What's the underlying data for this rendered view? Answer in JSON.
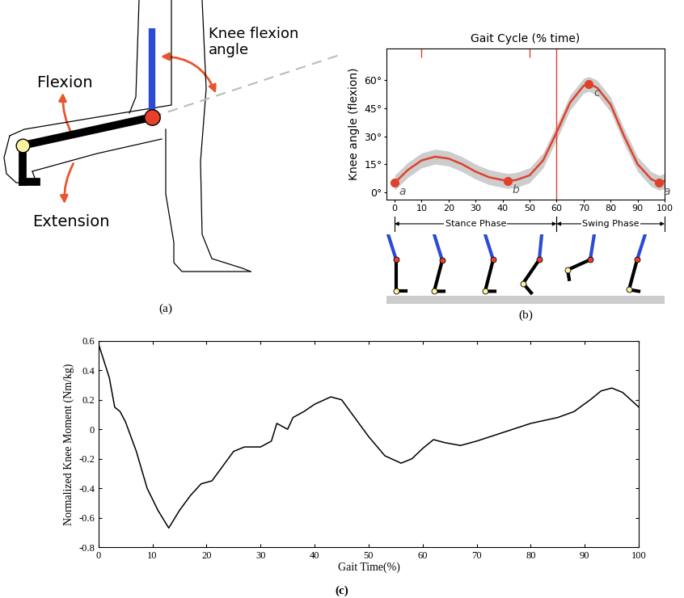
{
  "diagram": {
    "panel_label": "(a)",
    "labels": {
      "flexion": "Flexion",
      "extension": "Extension",
      "angle": "Knee flexion\nangle"
    }
  },
  "chart_data": [
    {
      "type": "line",
      "panel_label": "(b)",
      "title": "Gait Cycle (% time)",
      "ylabel": "Knee angle (flexion)",
      "color": "#e0412c",
      "x": [
        0,
        5,
        10,
        15,
        20,
        25,
        30,
        35,
        40,
        42,
        45,
        50,
        55,
        60,
        65,
        70,
        72,
        75,
        80,
        85,
        90,
        95,
        98,
        100
      ],
      "values": [
        5,
        12,
        17,
        19,
        18,
        15,
        11,
        8,
        6.5,
        6,
        6.5,
        9,
        17,
        32,
        48,
        57,
        58,
        56,
        47,
        30,
        15,
        7,
        5,
        6
      ],
      "spread": [
        4,
        4,
        4,
        4,
        4,
        4,
        4,
        4,
        4,
        4,
        4,
        4,
        4,
        4,
        4,
        4,
        4,
        4,
        4,
        4,
        4,
        4,
        4,
        4
      ],
      "points": [
        {
          "label": "a",
          "x": 0,
          "y": 5
        },
        {
          "label": "b",
          "x": 42,
          "y": 6
        },
        {
          "label": "c",
          "x": 72,
          "y": 58
        },
        {
          "label": "a",
          "x": 98,
          "y": 5
        }
      ],
      "phases": [
        {
          "name": "Stance Phase",
          "start": 0,
          "end": 60
        },
        {
          "name": "Swing Phase",
          "start": 60,
          "end": 100
        }
      ],
      "events": [
        10,
        50
      ],
      "xlim": [
        -3,
        100
      ],
      "ylim": [
        -4,
        77
      ],
      "xticks": [
        0,
        10,
        20,
        30,
        40,
        50,
        60,
        70,
        80,
        90,
        100
      ],
      "yticks": [
        {
          "value": 0,
          "label": "0°"
        },
        {
          "value": 15,
          "label": "15°"
        },
        {
          "value": 30,
          "label": "30°"
        },
        {
          "value": 45,
          "label": "45°"
        },
        {
          "value": 60,
          "label": "60°"
        }
      ]
    },
    {
      "type": "line",
      "panel_label": "(c)",
      "xlabel": "Gait Time(%)",
      "ylabel": "Normalized Knee Moment (Nm/kg)",
      "color": "#000000",
      "x": [
        0,
        2,
        3,
        4,
        5,
        7,
        9,
        11,
        13,
        15,
        17,
        19,
        21,
        23,
        25,
        27,
        30,
        32,
        33,
        34,
        35,
        36,
        38,
        40,
        43,
        45,
        47,
        50,
        53,
        56,
        58,
        60,
        62,
        64,
        67,
        70,
        75,
        80,
        85,
        88,
        91,
        93,
        95,
        97,
        100
      ],
      "values": [
        0.58,
        0.35,
        0.15,
        0.12,
        0.05,
        -0.15,
        -0.4,
        -0.55,
        -0.67,
        -0.55,
        -0.45,
        -0.37,
        -0.35,
        -0.25,
        -0.15,
        -0.12,
        -0.12,
        -0.08,
        0.04,
        0.02,
        0.0,
        0.08,
        0.12,
        0.17,
        0.22,
        0.2,
        0.1,
        -0.05,
        -0.18,
        -0.23,
        -0.2,
        -0.13,
        -0.07,
        -0.09,
        -0.11,
        -0.08,
        -0.02,
        0.04,
        0.08,
        0.12,
        0.2,
        0.26,
        0.28,
        0.25,
        0.15
      ],
      "xlim": [
        0,
        100
      ],
      "ylim": [
        -0.8,
        0.6
      ],
      "xticks": [
        0,
        10,
        20,
        30,
        40,
        50,
        60,
        70,
        80,
        90,
        100
      ],
      "yticks": [
        -0.8,
        -0.6,
        -0.4,
        -0.2,
        0,
        0.2,
        0.4,
        0.6
      ]
    }
  ]
}
